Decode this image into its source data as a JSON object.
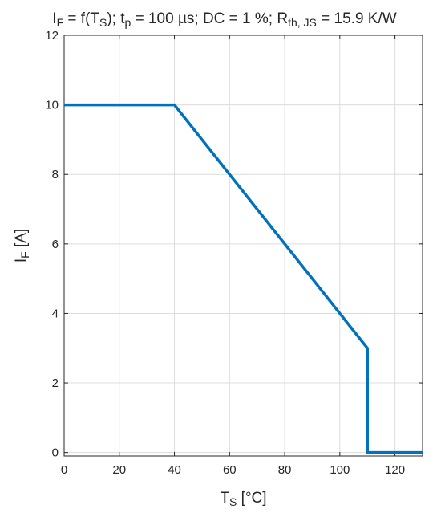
{
  "chart_data": {
    "type": "line",
    "title": {
      "parts": [
        {
          "t": "I",
          "sub": false
        },
        {
          "t": "F",
          "sub": true
        },
        {
          "t": " = f(T",
          "sub": false
        },
        {
          "t": "S",
          "sub": true
        },
        {
          "t": "); t",
          "sub": false
        },
        {
          "t": "p",
          "sub": true
        },
        {
          "t": " = 100 µs; DC = 1 %; R",
          "sub": false
        },
        {
          "t": "th, JS",
          "sub": true
        },
        {
          "t": " = 15.9 K/W",
          "sub": false
        }
      ]
    },
    "xlabel": {
      "main": "T",
      "sub": "S",
      "rest": " [°C]"
    },
    "ylabel": {
      "main": "I",
      "sub": "F",
      "rest": " [A]"
    },
    "xlim": [
      0,
      130
    ],
    "ylim": [
      -0.1,
      12
    ],
    "xticks": [
      0,
      20,
      40,
      60,
      80,
      100,
      120
    ],
    "yticks": [
      0,
      2,
      4,
      6,
      8,
      10,
      12
    ],
    "grid": true,
    "series": [
      {
        "color": "#0072BD",
        "points": [
          [
            0,
            10
          ],
          [
            40,
            10
          ],
          [
            110,
            3
          ],
          [
            110,
            0
          ],
          [
            130,
            0
          ]
        ]
      }
    ]
  }
}
